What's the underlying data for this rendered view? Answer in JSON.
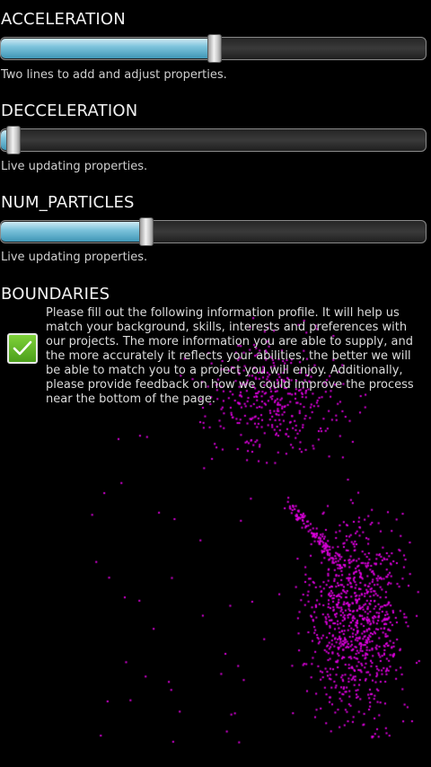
{
  "sliders": [
    {
      "title": "ACCELERATION",
      "note": "Two lines to add and adjust properties.",
      "level_fraction": 0.5
    },
    {
      "title": "DECCELERATION",
      "note": "Live updating properties.",
      "level_fraction": 0.03
    },
    {
      "title": "NUM_PARTICLES",
      "note": "Live updating properties.",
      "level_fraction": 0.34
    }
  ],
  "boundaries": {
    "title": "BOUNDARIES",
    "checked": true,
    "text": "Please fill out the following information profile. It will help us match your background, skills, interests and preferences with our projects. The more information you are able to supply, and the more accurately it reflects your abilities, the better we will be able to match you to a project you will enjoy. Additionally, please provide feedback on how we could improve the process near the bottom of the page."
  },
  "colors": {
    "particle": "#e100e1",
    "slider_fill": "#5fb0d0",
    "checkbox": "#5bb326"
  },
  "icons": {
    "checkbox": "check-icon"
  }
}
